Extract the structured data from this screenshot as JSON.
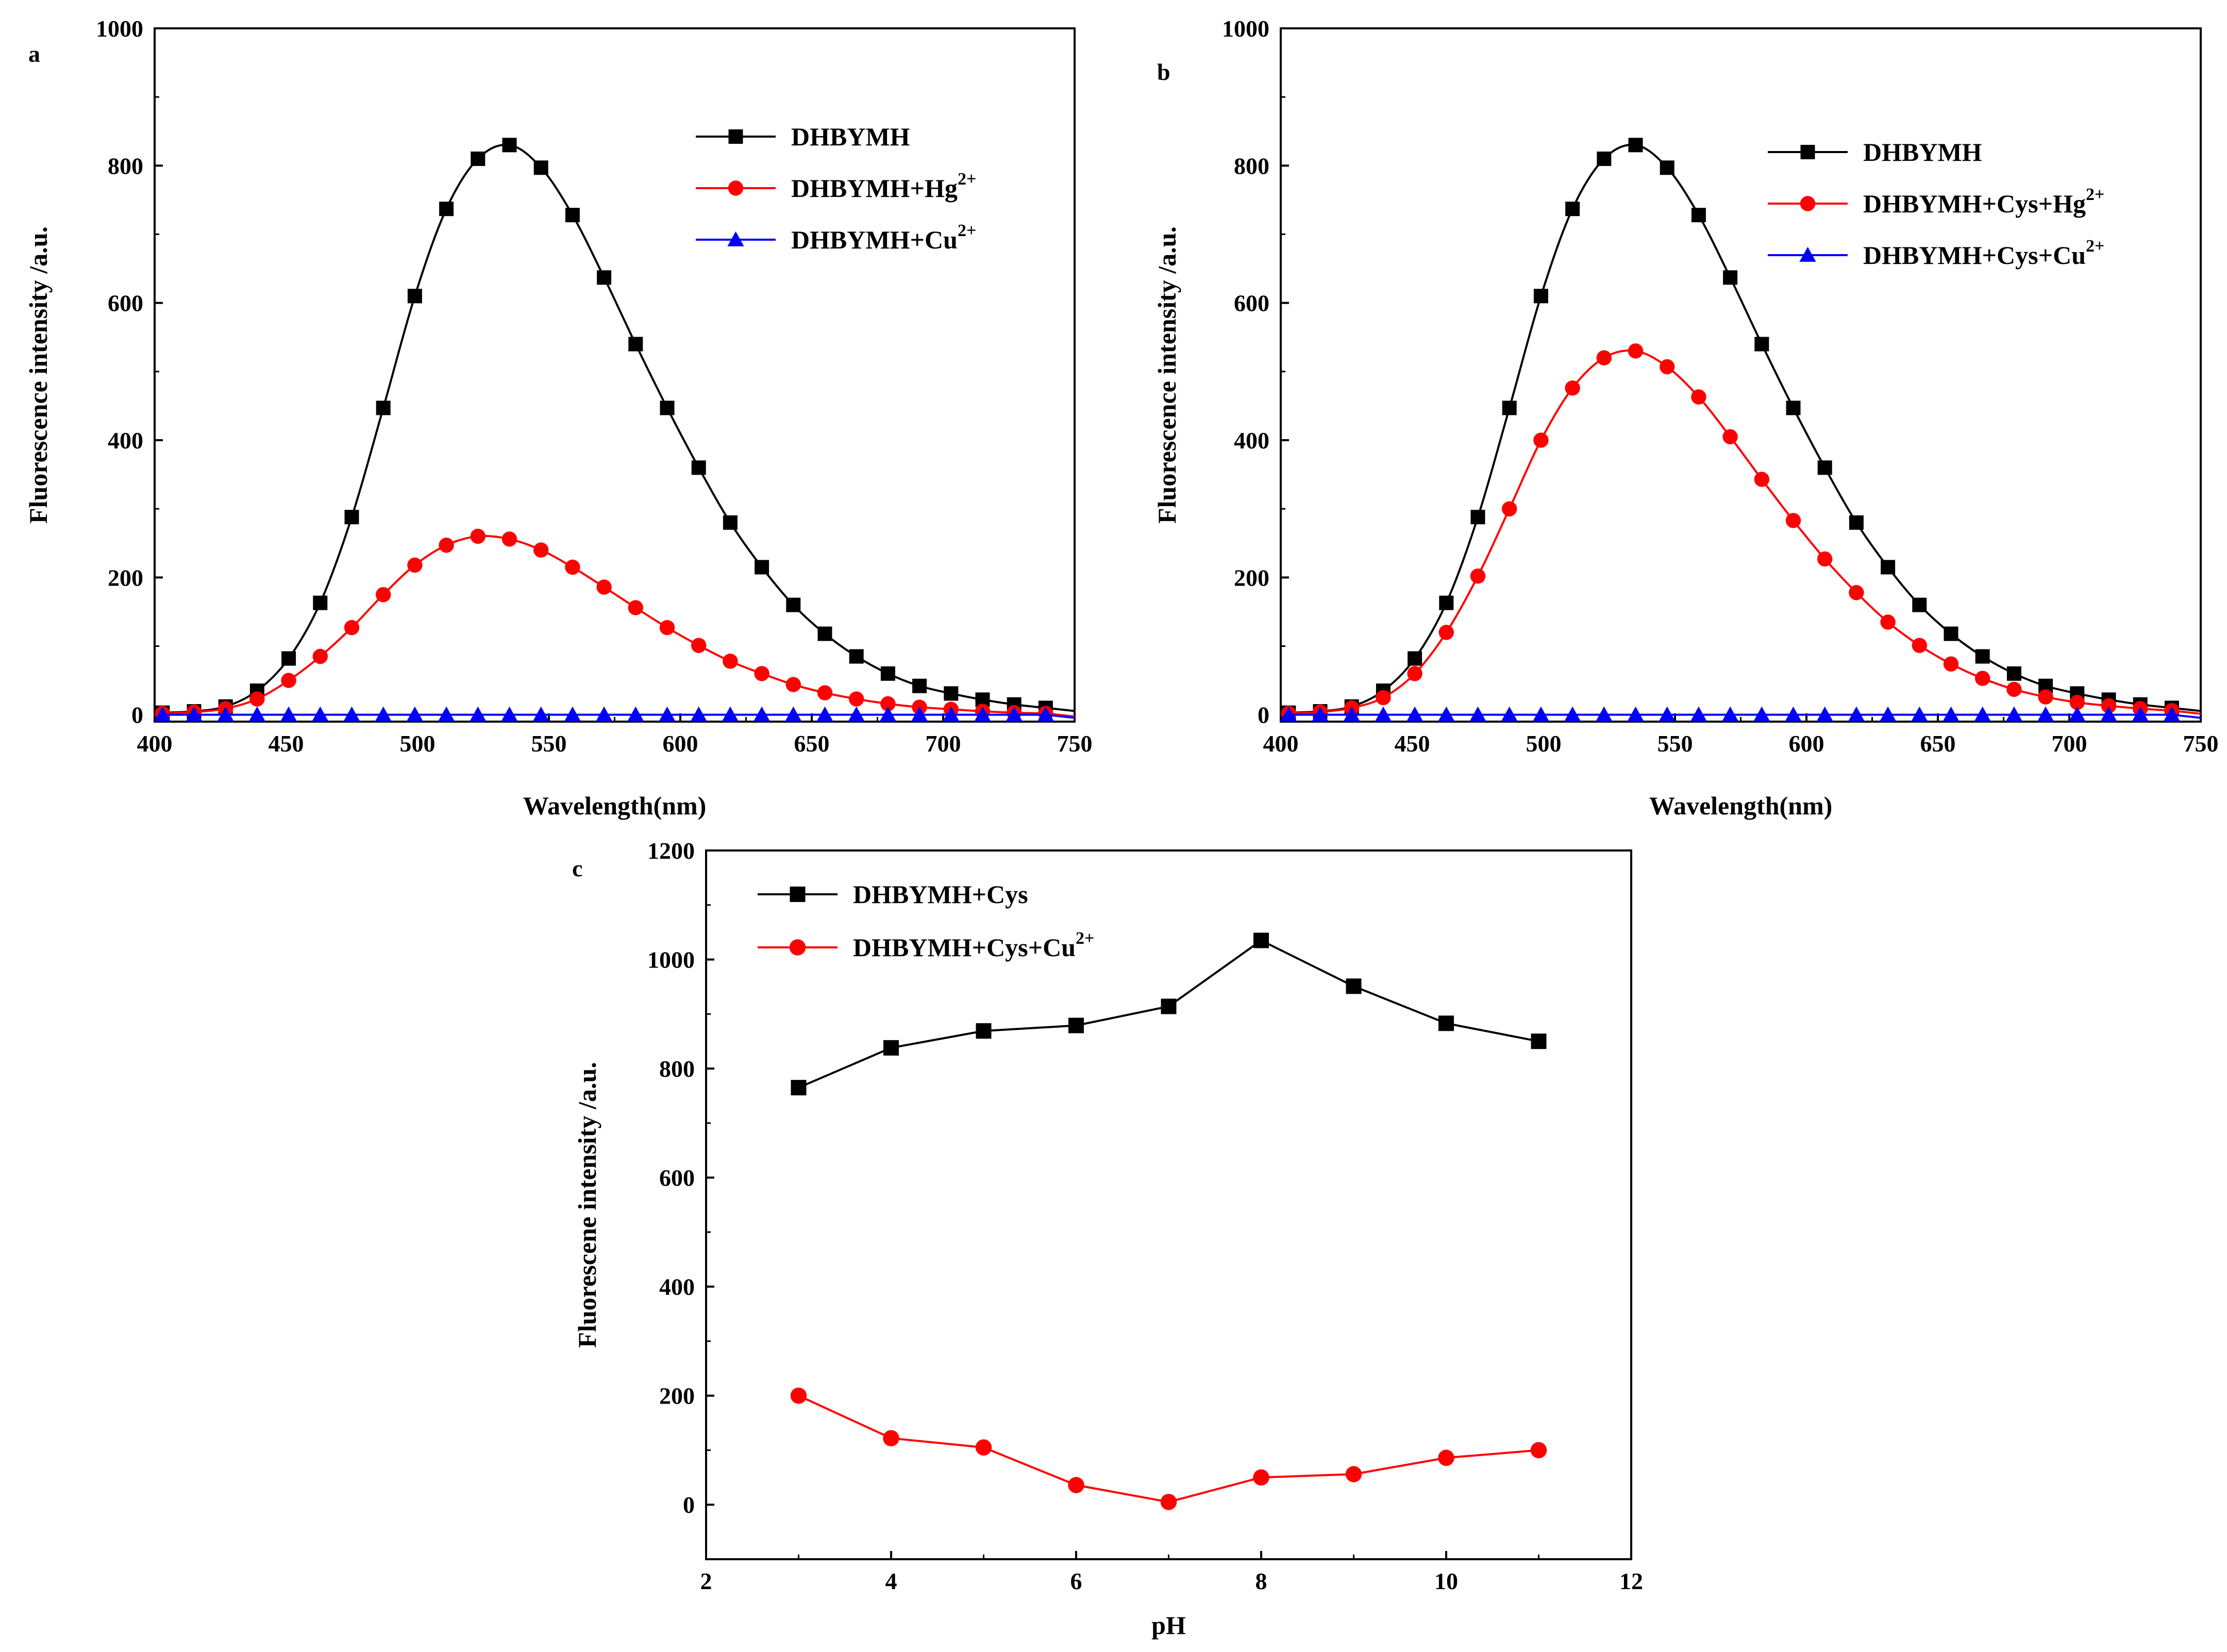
{
  "chart_data": [
    {
      "panel": "a",
      "type": "line",
      "xlabel": "Wavelength(nm)",
      "ylabel": "Fluorescence intensity /a.u.",
      "xlim": [
        400,
        750
      ],
      "ylim": [
        -10,
        1000
      ],
      "xticks": [
        400,
        450,
        500,
        550,
        600,
        650,
        700,
        750
      ],
      "yticks": [
        0,
        200,
        400,
        600,
        800,
        1000
      ],
      "legend_position": "top-right",
      "x": [
        403,
        415,
        427,
        439,
        451,
        463,
        475,
        487,
        499,
        511,
        523,
        535,
        547,
        559,
        571,
        583,
        595,
        607,
        619,
        631,
        643,
        655,
        667,
        679,
        691,
        703,
        715,
        727,
        739
      ],
      "series": [
        {
          "name": "DHBYMH",
          "sup": "",
          "color": "#000000",
          "marker": "square",
          "values": [
            3,
            5,
            12,
            35,
            82,
            163,
            288,
            447,
            610,
            737,
            810,
            830,
            797,
            728,
            637,
            540,
            447,
            360,
            280,
            215,
            160,
            118,
            85,
            60,
            42,
            31,
            22,
            15,
            10
          ]
        },
        {
          "name": "DHBYMH+Hg",
          "sup": "2+",
          "color": "#ff0000",
          "marker": "circle",
          "values": [
            2,
            4,
            9,
            23,
            50,
            85,
            127,
            175,
            218,
            247,
            260,
            256,
            240,
            215,
            186,
            156,
            127,
            101,
            78,
            60,
            44,
            32,
            23,
            16,
            11,
            8,
            5,
            3,
            2
          ]
        },
        {
          "name": "DHBYMH+Cu",
          "sup": "2+",
          "color": "#0000ff",
          "marker": "triangle",
          "values": [
            0,
            0,
            0,
            0,
            0,
            0,
            0,
            0,
            0,
            0,
            0,
            0,
            0,
            0,
            0,
            0,
            0,
            0,
            0,
            0,
            0,
            0,
            0,
            0,
            0,
            0,
            0,
            0,
            0
          ]
        }
      ]
    },
    {
      "panel": "b",
      "type": "line",
      "xlabel": "Wavelength(nm)",
      "ylabel": "Fluorescence intensity /a.u.",
      "xlim": [
        400,
        750
      ],
      "ylim": [
        -10,
        1000
      ],
      "xticks": [
        400,
        450,
        500,
        550,
        600,
        650,
        700,
        750
      ],
      "yticks": [
        0,
        200,
        400,
        600,
        800,
        1000
      ],
      "legend_position": "top-right",
      "x": [
        403,
        415,
        427,
        439,
        451,
        463,
        475,
        487,
        499,
        511,
        523,
        535,
        547,
        559,
        571,
        583,
        595,
        607,
        619,
        631,
        643,
        655,
        667,
        679,
        691,
        703,
        715,
        727,
        739
      ],
      "series": [
        {
          "name": "DHBYMH",
          "sup": "",
          "color": "#000000",
          "marker": "square",
          "values": [
            3,
            5,
            12,
            35,
            82,
            163,
            288,
            447,
            610,
            737,
            810,
            830,
            797,
            728,
            637,
            540,
            447,
            360,
            280,
            215,
            160,
            118,
            85,
            60,
            42,
            31,
            22,
            15,
            10
          ]
        },
        {
          "name": "DHBYMH+Cys+Hg",
          "sup": "2+",
          "color": "#ff0000",
          "marker": "circle",
          "values": [
            2,
            4,
            10,
            25,
            60,
            120,
            202,
            300,
            400,
            476,
            520,
            530,
            507,
            463,
            405,
            343,
            283,
            227,
            178,
            135,
            101,
            74,
            53,
            37,
            26,
            18,
            13,
            9,
            6
          ]
        },
        {
          "name": "DHBYMH+Cys+Cu",
          "sup": "2+",
          "color": "#0000ff",
          "marker": "triangle",
          "values": [
            0,
            0,
            0,
            0,
            0,
            0,
            0,
            0,
            0,
            0,
            0,
            0,
            0,
            0,
            0,
            0,
            0,
            0,
            0,
            0,
            0,
            0,
            0,
            0,
            0,
            0,
            0,
            0,
            0
          ]
        }
      ]
    },
    {
      "panel": "c",
      "type": "line",
      "xlabel": "pH",
      "ylabel": "Fluorescene intensity /a.u.",
      "xlim": [
        2,
        12
      ],
      "ylim": [
        -100,
        1200
      ],
      "xticks": [
        2,
        4,
        6,
        8,
        10,
        12
      ],
      "yticks": [
        0,
        200,
        400,
        600,
        800,
        1000,
        1200
      ],
      "legend_position": "top-left",
      "x": [
        3,
        4,
        5,
        6,
        7,
        8,
        9,
        10,
        11
      ],
      "series": [
        {
          "name": "DHBYMH+Cys",
          "sup": "",
          "color": "#000000",
          "marker": "square",
          "values": [
            765,
            838,
            869,
            879,
            914,
            1035,
            951,
            883,
            850
          ]
        },
        {
          "name": "DHBYMH+Cys+Cu",
          "sup": "2+",
          "color": "#ff0000",
          "marker": "circle",
          "values": [
            200,
            122,
            105,
            36,
            5,
            50,
            56,
            86,
            100
          ]
        }
      ]
    }
  ]
}
